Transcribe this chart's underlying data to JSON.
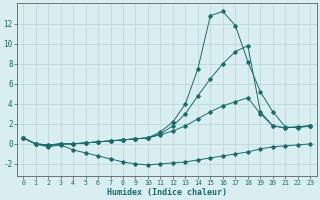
{
  "title": "",
  "xlabel": "Humidex (Indice chaleur)",
  "bg_color": "#d8eef0",
  "grid_color": "#b8d4d8",
  "line_color": "#1a6b6b",
  "spine_color": "#606060",
  "xlim": [
    -0.5,
    23.5
  ],
  "ylim": [
    -3.2,
    14.0
  ],
  "xticks": [
    0,
    1,
    2,
    3,
    4,
    5,
    6,
    7,
    8,
    9,
    10,
    11,
    12,
    13,
    14,
    15,
    16,
    17,
    18,
    19,
    20,
    21,
    22,
    23
  ],
  "yticks": [
    -2,
    0,
    2,
    4,
    6,
    8,
    10,
    12
  ],
  "series": [
    [
      0.6,
      0.0,
      -0.3,
      -0.1,
      -0.6,
      -0.9,
      -1.2,
      -1.5,
      -1.8,
      -2.0,
      -2.1,
      -2.0,
      -1.9,
      -1.8,
      -1.6,
      -1.4,
      -1.2,
      -1.0,
      -0.8,
      -0.5,
      -0.3,
      -0.2,
      -0.1,
      0.0
    ],
    [
      0.6,
      0.0,
      -0.1,
      0.0,
      0.0,
      0.1,
      0.2,
      0.3,
      0.4,
      0.5,
      0.6,
      0.9,
      1.3,
      1.8,
      2.5,
      3.2,
      3.8,
      4.2,
      4.6,
      3.0,
      1.8,
      1.6,
      1.7,
      1.8
    ],
    [
      0.6,
      0.0,
      -0.2,
      0.0,
      0.0,
      0.1,
      0.2,
      0.3,
      0.4,
      0.5,
      0.6,
      1.2,
      2.2,
      4.0,
      7.5,
      12.8,
      13.2,
      11.8,
      8.2,
      5.2,
      3.2,
      1.7,
      1.6,
      1.8
    ],
    [
      0.6,
      0.0,
      -0.1,
      0.0,
      0.0,
      0.1,
      0.2,
      0.3,
      0.4,
      0.5,
      0.6,
      1.0,
      1.8,
      3.0,
      4.8,
      6.5,
      8.0,
      9.2,
      9.8,
      3.2,
      1.8,
      1.6,
      1.7,
      1.8
    ]
  ]
}
